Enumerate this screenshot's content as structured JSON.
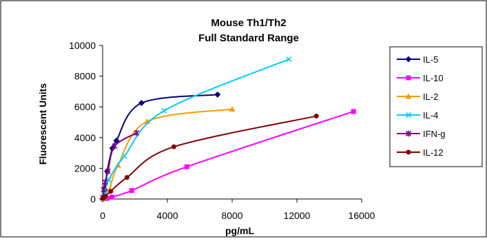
{
  "chart_data": {
    "type": "line",
    "title_line1": "Mouse Th1/Th2",
    "title_line2": "Full Standard Range",
    "xlabel": "pg/mL",
    "ylabel": "Fluorescent Units",
    "xlim": [
      0,
      16000
    ],
    "ylim": [
      0,
      10000
    ],
    "xticks": [
      0,
      4000,
      8000,
      12000,
      16000
    ],
    "yticks": [
      0,
      2000,
      4000,
      6000,
      8000,
      10000
    ],
    "grid": false,
    "legend_position": "right",
    "series": [
      {
        "name": "IL-5",
        "color": "#000080",
        "marker": "diamond",
        "points": [
          [
            20,
            20
          ],
          [
            60,
            150
          ],
          [
            130,
            600
          ],
          [
            280,
            1800
          ],
          [
            600,
            3300
          ],
          [
            850,
            3800
          ],
          [
            2400,
            6250
          ],
          [
            7100,
            6800
          ]
        ]
      },
      {
        "name": "IL-10",
        "color": "#ff00ff",
        "marker": "square",
        "points": [
          [
            30,
            10
          ],
          [
            120,
            20
          ],
          [
            280,
            40
          ],
          [
            580,
            120
          ],
          [
            1800,
            550
          ],
          [
            5200,
            2100
          ],
          [
            15500,
            5700
          ]
        ]
      },
      {
        "name": "IL-2",
        "color": "#ff9900",
        "marker": "triangle",
        "points": [
          [
            20,
            10
          ],
          [
            80,
            80
          ],
          [
            200,
            200
          ],
          [
            430,
            600
          ],
          [
            950,
            2200
          ],
          [
            2750,
            5050
          ],
          [
            8000,
            5850
          ]
        ]
      },
      {
        "name": "IL-4",
        "color": "#00ccff",
        "marker": "x",
        "points": [
          [
            30,
            30
          ],
          [
            120,
            300
          ],
          [
            380,
            1250
          ],
          [
            1350,
            2800
          ],
          [
            3800,
            5750
          ],
          [
            11500,
            9100
          ]
        ]
      },
      {
        "name": "IFN-g",
        "color": "#800080",
        "marker": "star",
        "points": [
          [
            20,
            100
          ],
          [
            60,
            600
          ],
          [
            150,
            1100
          ],
          [
            330,
            1800
          ],
          [
            750,
            3450
          ],
          [
            2100,
            4300
          ]
        ]
      },
      {
        "name": "IL-12",
        "color": "#800000",
        "marker": "circle",
        "points": [
          [
            20,
            50
          ],
          [
            80,
            100
          ],
          [
            180,
            180
          ],
          [
            500,
            500
          ],
          [
            1500,
            1400
          ],
          [
            4400,
            3400
          ],
          [
            13200,
            5400
          ]
        ]
      }
    ]
  }
}
